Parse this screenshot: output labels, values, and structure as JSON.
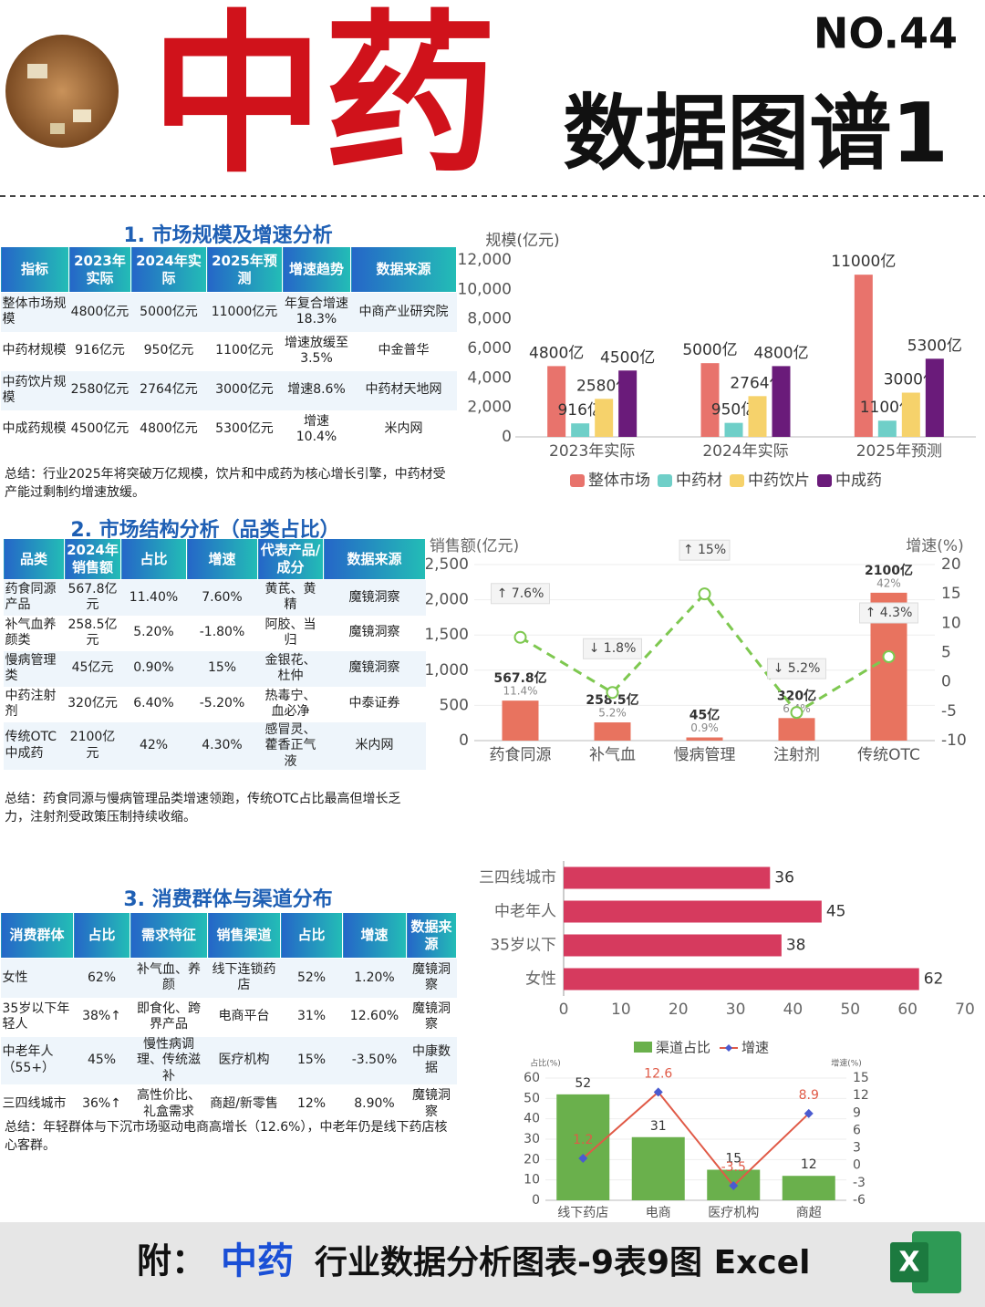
{
  "header": {
    "brand": "中药",
    "number": "NO.44",
    "subtitle": "数据图谱1"
  },
  "sections": [
    {
      "title": "1. 市场规模及增速分析",
      "table": {
        "header": [
          "指标",
          "2023年实际",
          "2024年实际",
          "2025年预测",
          "增速趋势",
          "数据来源"
        ],
        "rows": [
          [
            "整体市场规模",
            "4800亿元",
            "5000亿元",
            "11000亿元",
            "年复合增速18.3%",
            "中商产业研究院"
          ],
          [
            "中药材规模",
            "916亿元",
            "950亿元",
            "1100亿元",
            "增速放缓至3.5%",
            "中金普华"
          ],
          [
            "中药饮片规模",
            "2580亿元",
            "2764亿元",
            "3000亿元",
            "增速8.6%",
            "中药材天地网"
          ],
          [
            "中成药规模",
            "4500亿元",
            "4800亿元",
            "5300亿元",
            "增速10.4%",
            "米内网"
          ]
        ]
      },
      "summary": "总结：行业2025年将突破万亿规模，饮片和中成药为核心增长引擎，中药材受产能过剩制约增速放缓。"
    },
    {
      "title": "2. 市场结构分析（品类占比）",
      "table": {
        "header": [
          "品类",
          "2024年销售额",
          "占比",
          "增速",
          "代表产品/成分",
          "数据来源"
        ],
        "rows": [
          [
            "药食同源产品",
            "567.8亿元",
            "11.40%",
            "7.60%",
            "黄芪、黄精",
            "魔镜洞察"
          ],
          [
            "补气血养颜类",
            "258.5亿元",
            "5.20%",
            "-1.80%",
            "阿胶、当归",
            "魔镜洞察"
          ],
          [
            "慢病管理类",
            "45亿元",
            "0.90%",
            "15%",
            "金银花、杜仲",
            "魔镜洞察"
          ],
          [
            "中药注射剂",
            "320亿元",
            "6.40%",
            "-5.20%",
            "热毒宁、血必净",
            "中泰证券"
          ],
          [
            "传统OTC中成药",
            "2100亿元",
            "42%",
            "4.30%",
            "感冒灵、藿香正气液",
            "米内网"
          ]
        ]
      },
      "summary": "总结：药食同源与慢病管理品类增速领跑，传统OTC占比最高但增长乏力，注射剂受政策压制持续收缩。"
    },
    {
      "title": "3. 消费群体与渠道分布",
      "table": {
        "header": [
          "消费群体",
          "占比",
          "需求特征",
          "销售渠道",
          "占比",
          "增速",
          "数据来源"
        ],
        "rows": [
          [
            "女性",
            "62%",
            "补气血、养颜",
            "线下连锁药店",
            "52%",
            "1.20%",
            "魔镜洞察"
          ],
          [
            "35岁以下年轻人",
            "38%↑",
            "即食化、跨界产品",
            "电商平台",
            "31%",
            "12.60%",
            "魔镜洞察"
          ],
          [
            "中老年人（55+）",
            "45%",
            "慢性病调理、传统滋补",
            "医疗机构",
            "15%",
            "-3.50%",
            "中康数据"
          ],
          [
            "三四线城市",
            "36%↑",
            "高性价比、礼盒需求",
            "商超/新零售",
            "12%",
            "8.90%",
            "魔镜洞察"
          ]
        ]
      },
      "summary": "总结：年轻群体与下沉市场驱动电商高增长（12.6%），中老年仍是线下药店核心客群。"
    }
  ],
  "chart_data": [
    {
      "type": "bar",
      "y_label": "规模(亿元)",
      "categories": [
        "2023年实际",
        "2024年实际",
        "2025年预测"
      ],
      "series": [
        {
          "name": "整体市场",
          "color": "#e8736c",
          "values": [
            4800,
            5000,
            11000
          ],
          "value_labels": [
            "4800亿",
            "5000亿",
            "11000亿"
          ]
        },
        {
          "name": "中药材",
          "color": "#6fcfc8",
          "values": [
            916,
            950,
            1100
          ],
          "value_labels": [
            "916亿",
            "950亿",
            "1100亿"
          ]
        },
        {
          "name": "中药饮片",
          "color": "#f6d26b",
          "values": [
            2580,
            2764,
            3000
          ],
          "value_labels": [
            "2580亿",
            "2764亿",
            "3000亿"
          ]
        },
        {
          "name": "中成药",
          "color": "#6a1b7a",
          "values": [
            4500,
            4800,
            5300
          ],
          "value_labels": [
            "4500亿",
            "4800亿",
            "5300亿"
          ]
        }
      ],
      "ylim": [
        0,
        12000
      ],
      "yticks": [
        0,
        {
          "value": 2000,
          "label": "2,000"
        },
        {
          "value": 4000,
          "label": "4,000"
        },
        {
          "value": 6000,
          "label": "6,000"
        },
        {
          "value": 8000,
          "label": "8,000"
        },
        {
          "value": 10000,
          "label": "10,000"
        },
        {
          "value": 12000,
          "label": "12,000"
        }
      ],
      "grid": false,
      "legend": "bottom"
    },
    {
      "type": "bar_line",
      "y_label": "销售额(亿元)",
      "y2_label": "增速(%)",
      "categories": [
        "药食同源",
        "补气血",
        "慢病管理",
        "注射剂",
        "传统OTC"
      ],
      "series": [
        {
          "color": "#e8735f",
          "values": [
            567.8,
            258.5,
            45,
            320,
            2100
          ],
          "value_labels": [
            "567.8亿",
            "258.5亿",
            "45亿",
            "320亿",
            "2100亿"
          ],
          "share_labels": [
            "11.4%",
            "5.2%",
            "0.9%",
            "6.4%",
            "42%"
          ]
        },
        {
          "color": "#7ec850",
          "axis": "y2",
          "values": [
            7.6,
            -1.8,
            15,
            -5.2,
            4.3
          ],
          "value_labels": [
            "↑ 7.6%",
            "↓ 1.8%",
            "↑ 15%",
            "↓ 5.2%",
            "↑ 4.3%"
          ]
        }
      ],
      "ylim": [
        0,
        2500
      ],
      "yticks": [
        0,
        500,
        {
          "value": 1000,
          "label": "1,000"
        },
        {
          "value": 1500,
          "label": "1,500"
        },
        {
          "value": 2000,
          "label": "2,000"
        },
        {
          "value": 2500,
          "label": "2,500"
        }
      ],
      "y2lim": [
        -10,
        20
      ],
      "y2ticks": [
        -10,
        -5,
        0,
        5,
        10,
        15,
        20
      ],
      "grid": true,
      "legend": "none"
    },
    {
      "type": "hbar",
      "categories": [
        "三四线城市",
        "中老年人",
        "35岁以下",
        "女性"
      ],
      "values": [
        36,
        45,
        38,
        62
      ],
      "color": "#d63a5e",
      "xlim": [
        0,
        70
      ],
      "xticks": [
        0,
        10,
        20,
        30,
        40,
        50,
        60,
        70
      ],
      "grid": false
    },
    {
      "type": "bar_line",
      "y_label": "占比(%)",
      "y2_label": "增速(%)",
      "categories": [
        "线下药店",
        "电商",
        "医疗机构",
        "商超"
      ],
      "series": [
        {
          "name": "渠道占比",
          "color": "#6ab04c",
          "values": [
            52,
            31,
            15,
            12
          ]
        },
        {
          "name": "增速",
          "color": "#e05a47",
          "marker_color": "#4a5bd0",
          "axis": "y2",
          "values": [
            1.2,
            12.6,
            -3.5,
            8.9
          ]
        }
      ],
      "ylim": [
        0,
        60
      ],
      "yticks": [
        0,
        10,
        20,
        30,
        40,
        50,
        60
      ],
      "y2lim": [
        -6,
        15
      ],
      "y2ticks": [
        -6,
        -3,
        0,
        3,
        6,
        9,
        12,
        15
      ],
      "grid": true,
      "legend": "top"
    }
  ],
  "footer": {
    "prefix": "附：",
    "highlight": "中药",
    "text": "行业数据分析图表-9表9图 Excel",
    "icon": "X"
  }
}
